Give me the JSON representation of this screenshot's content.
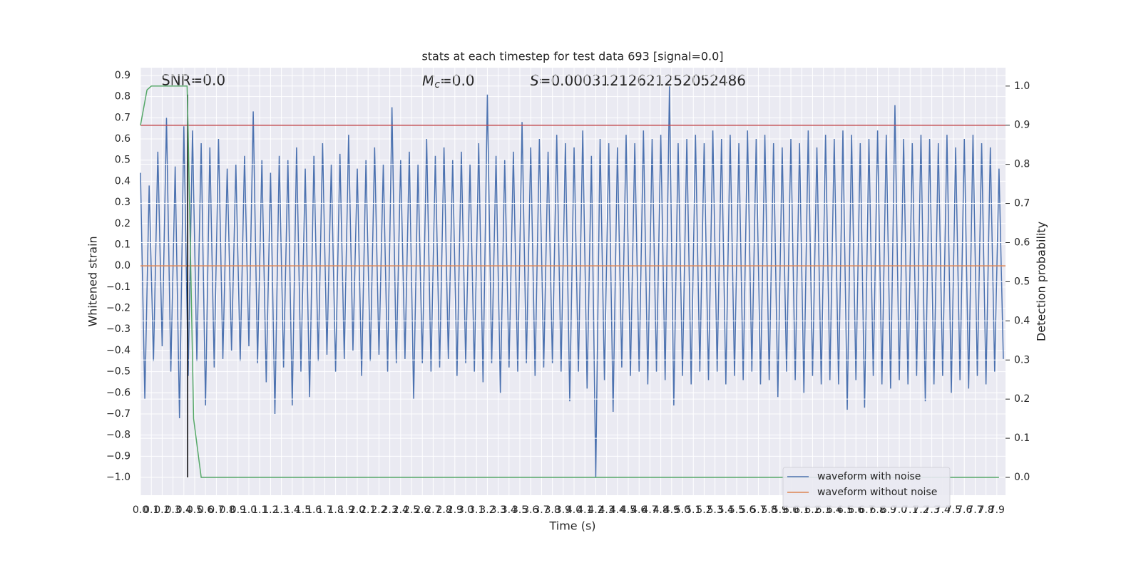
{
  "chart_data": {
    "type": "line",
    "title": "stats at each timestep for test data 693 [signal=0.0]",
    "xlabel": "Time (s)",
    "ylabel": "Whitened strain",
    "y2label": "Detection probability",
    "annotations": [
      {
        "text": "SNR=0.0"
      },
      {
        "symbol": "M",
        "subscript": "c",
        "text": "=0.0"
      },
      {
        "symbol": "S",
        "text": "=0.00031212621252052486"
      }
    ],
    "grid": true,
    "background": "#eaeaf2",
    "legend": "lower right",
    "xlim": [
      0,
      7.98
    ],
    "ylim": [
      -1.084,
      0.937
    ],
    "y2lim": [
      -0.0455,
      1.047
    ],
    "xticks": [
      {
        "value": 0,
        "label": "0.0"
      },
      0.1,
      0.2,
      0.3,
      0.4,
      0.5,
      0.6,
      0.7,
      0.8,
      0.9,
      {
        "value": 1,
        "label": "1.0"
      },
      1.1,
      1.2,
      1.3,
      1.4,
      1.5,
      1.6,
      1.7,
      1.8,
      1.9,
      {
        "value": 2,
        "label": "2.0"
      },
      2.1,
      2.2,
      2.3,
      2.4,
      2.5,
      2.6,
      2.7,
      2.8,
      2.9,
      {
        "value": 3,
        "label": "3.0"
      },
      3.1,
      3.2,
      3.3,
      3.4,
      3.5,
      3.6,
      3.7,
      3.8,
      3.9,
      {
        "value": 4,
        "label": "4.0"
      },
      4.1,
      4.2,
      4.3,
      4.4,
      4.5,
      4.6,
      4.7,
      4.8,
      4.9,
      {
        "value": 5,
        "label": "5.0"
      },
      5.1,
      5.2,
      5.3,
      5.4,
      5.5,
      5.6,
      5.7,
      5.8,
      5.9,
      {
        "value": 6,
        "label": "6.0"
      },
      6.1,
      6.2,
      6.3,
      6.4,
      6.5,
      6.6,
      6.7,
      6.8,
      6.9,
      {
        "value": 7,
        "label": "7.0"
      },
      7.1,
      7.2,
      7.3,
      7.4,
      7.5,
      7.6,
      7.7,
      7.8,
      7.9
    ],
    "yticks": [
      {
        "value": -1,
        "label": "−1.0"
      },
      {
        "value": -0.9,
        "label": "−0.9"
      },
      {
        "value": -0.8,
        "label": "−0.8"
      },
      {
        "value": -0.7,
        "label": "−0.7"
      },
      {
        "value": -0.6,
        "label": "−0.6"
      },
      {
        "value": -0.5,
        "label": "−0.5"
      },
      {
        "value": -0.4,
        "label": "−0.4"
      },
      {
        "value": -0.3,
        "label": "−0.3"
      },
      {
        "value": -0.2,
        "label": "−0.2"
      },
      {
        "value": -0.1,
        "label": "−0.1"
      },
      {
        "value": 0,
        "label": "0.0"
      },
      0.1,
      0.2,
      0.3,
      0.4,
      0.5,
      0.6,
      0.7,
      0.8,
      0.9
    ],
    "y2ticks": [
      {
        "value": 0,
        "label": "0.0"
      },
      0.1,
      0.2,
      0.3,
      0.4,
      0.5,
      0.6,
      0.7,
      0.8,
      0.9,
      {
        "value": 1,
        "label": "1.0"
      }
    ],
    "series": [
      {
        "name": "waveform with noise",
        "color": "#4c72b0",
        "x": [
          0,
          0.04,
          0.08,
          0.12,
          0.16,
          0.2,
          0.24,
          0.28,
          0.32,
          0.36,
          0.4,
          0.44,
          0.48,
          0.52,
          0.56,
          0.6,
          0.64,
          0.68,
          0.72,
          0.76,
          0.8,
          0.84,
          0.88,
          0.92,
          0.96,
          1,
          1.04,
          1.08,
          1.12,
          1.16,
          1.2,
          1.24,
          1.28,
          1.32,
          1.36,
          1.4,
          1.44,
          1.48,
          1.52,
          1.56,
          1.6,
          1.64,
          1.68,
          1.72,
          1.76,
          1.8,
          1.84,
          1.88,
          1.92,
          1.96,
          2,
          2.04,
          2.08,
          2.12,
          2.16,
          2.2,
          2.24,
          2.28,
          2.32,
          2.36,
          2.4,
          2.44,
          2.48,
          2.52,
          2.56,
          2.6,
          2.64,
          2.68,
          2.72,
          2.76,
          2.8,
          2.84,
          2.88,
          2.92,
          2.96,
          3,
          3.04,
          3.08,
          3.12,
          3.16,
          3.2,
          3.24,
          3.28,
          3.32,
          3.36,
          3.4,
          3.44,
          3.48,
          3.52,
          3.56,
          3.6,
          3.64,
          3.68,
          3.72,
          3.76,
          3.8,
          3.84,
          3.88,
          3.92,
          3.96,
          4,
          4.04,
          4.08,
          4.12,
          4.16,
          4.2,
          4.24,
          4.28,
          4.32,
          4.36,
          4.4,
          4.44,
          4.48,
          4.52,
          4.56,
          4.6,
          4.64,
          4.68,
          4.72,
          4.76,
          4.8,
          4.84,
          4.88,
          4.92,
          4.96,
          5,
          5.04,
          5.08,
          5.12,
          5.16,
          5.2,
          5.24,
          5.28,
          5.32,
          5.36,
          5.4,
          5.44,
          5.48,
          5.52,
          5.56,
          5.6,
          5.64,
          5.68,
          5.72,
          5.76,
          5.8,
          5.84,
          5.88,
          5.92,
          5.96,
          6,
          6.04,
          6.08,
          6.12,
          6.16,
          6.2,
          6.24,
          6.28,
          6.32,
          6.36,
          6.4,
          6.44,
          6.48,
          6.52,
          6.56,
          6.6,
          6.64,
          6.68,
          6.72,
          6.76,
          6.8,
          6.84,
          6.88,
          6.92,
          6.96,
          7,
          7.04,
          7.08,
          7.12,
          7.16,
          7.2,
          7.24,
          7.28,
          7.32,
          7.36,
          7.4,
          7.44,
          7.48,
          7.52,
          7.56,
          7.6,
          7.64,
          7.68,
          7.72,
          7.76,
          7.8,
          7.84,
          7.88,
          7.92,
          7.96
        ],
        "values": [
          0.44,
          -0.63,
          0.38,
          -0.45,
          0.54,
          -0.38,
          0.7,
          -0.5,
          0.47,
          -0.72,
          0.66,
          -0.52,
          0.64,
          -0.45,
          0.58,
          -0.66,
          0.56,
          -0.48,
          0.6,
          -0.44,
          0.46,
          -0.4,
          0.48,
          -0.45,
          0.52,
          -0.38,
          0.73,
          -0.46,
          0.5,
          -0.55,
          0.44,
          -0.7,
          0.52,
          -0.48,
          0.5,
          -0.66,
          0.56,
          -0.5,
          0.46,
          -0.62,
          0.52,
          -0.45,
          0.58,
          -0.42,
          0.48,
          -0.5,
          0.53,
          -0.44,
          0.62,
          -0.4,
          0.46,
          -0.52,
          0.5,
          -0.45,
          0.56,
          -0.42,
          0.48,
          -0.5,
          0.75,
          -0.46,
          0.5,
          -0.44,
          0.54,
          -0.63,
          0.48,
          -0.46,
          0.6,
          -0.5,
          0.52,
          -0.48,
          0.56,
          -0.44,
          0.5,
          -0.52,
          0.54,
          -0.46,
          0.48,
          -0.5,
          0.58,
          -0.55,
          0.81,
          -0.46,
          0.52,
          -0.6,
          0.5,
          -0.48,
          0.54,
          -0.5,
          0.68,
          -0.46,
          0.56,
          -0.52,
          0.6,
          -0.48,
          0.54,
          -0.46,
          0.62,
          -0.5,
          0.58,
          -0.64,
          0.56,
          -0.5,
          0.64,
          -0.58,
          0.52,
          -1.0,
          0.6,
          -0.54,
          0.58,
          -0.69,
          0.56,
          -0.48,
          0.62,
          -0.52,
          0.58,
          -0.5,
          0.64,
          -0.56,
          0.6,
          -0.5,
          0.62,
          -0.54,
          0.85,
          -0.66,
          0.58,
          -0.52,
          0.6,
          -0.56,
          0.62,
          -0.5,
          0.58,
          -0.54,
          0.64,
          -0.5,
          0.6,
          -0.56,
          0.62,
          -0.52,
          0.58,
          -0.54,
          0.64,
          -0.5,
          0.6,
          -0.56,
          0.62,
          -0.54,
          0.58,
          -0.62,
          0.56,
          -0.5,
          0.6,
          -0.54,
          0.58,
          -0.6,
          0.64,
          -0.52,
          0.56,
          -0.56,
          0.62,
          -0.54,
          0.6,
          -0.56,
          0.64,
          -0.68,
          0.62,
          -0.54,
          0.58,
          -0.67,
          0.6,
          -0.52,
          0.64,
          -0.56,
          0.62,
          -0.58,
          0.76,
          -0.54,
          0.6,
          -0.56,
          0.58,
          -0.52,
          0.62,
          -0.64,
          0.6,
          -0.56,
          0.58,
          -0.52,
          0.62,
          -0.6,
          0.56,
          -0.54,
          0.6,
          -0.58,
          0.62,
          -0.52,
          0.58,
          -0.56,
          0.56,
          -0.5,
          0.46,
          -0.44
        ]
      },
      {
        "name": "waveform without noise",
        "color": "#dd8452",
        "x": [
          0,
          7.98
        ],
        "values": [
          0,
          0
        ]
      },
      {
        "color": "#55a868",
        "axis": "y2",
        "x": [
          0,
          0.06,
          0.1,
          0.43,
          0.44,
          0.48,
          0.49,
          0.56,
          7.92
        ],
        "values": [
          0.9,
          0.99,
          1.0,
          1.0,
          0.88,
          0.3,
          0.15,
          0.0,
          0.0
        ]
      }
    ],
    "hlines": [
      {
        "y": 0.9,
        "axis": "y2",
        "color": "#c44e52"
      }
    ],
    "vlines": [
      {
        "x": 0.435,
        "ymin": -1.0,
        "ymax": 0.81,
        "color": "#000000"
      }
    ]
  }
}
